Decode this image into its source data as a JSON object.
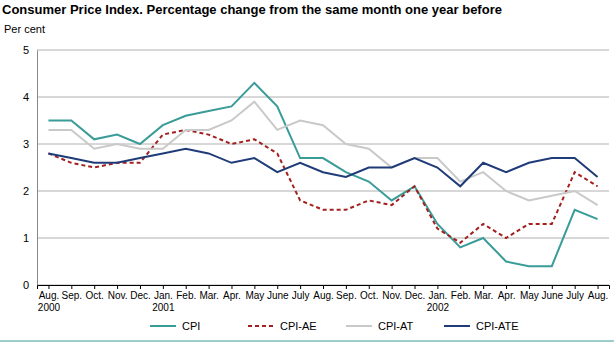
{
  "chart_data": {
    "type": "line",
    "title": "Consumer Price Index. Percentage change from the same month one year before",
    "y_label": "Per cent",
    "categories": [
      "Aug. 2000",
      "Sep.",
      "Oct.",
      "Nov.",
      "Dec.",
      "Jan. 2001",
      "Feb.",
      "Mar.",
      "Apr.",
      "May",
      "June",
      "July",
      "Aug.",
      "Sep.",
      "Oct.",
      "Nov.",
      "Dec.",
      "Jan. 2002",
      "Feb.",
      "Mar.",
      "Apr.",
      "May",
      "June",
      "July",
      "Aug."
    ],
    "series": [
      {
        "name": "CPI",
        "color": "#3a9c98",
        "line_style": "solid",
        "values": [
          3.5,
          3.5,
          3.1,
          3.2,
          3.0,
          3.4,
          3.6,
          3.7,
          3.8,
          4.3,
          3.8,
          2.7,
          2.7,
          2.4,
          2.2,
          1.8,
          2.1,
          1.3,
          0.8,
          1.0,
          0.5,
          0.4,
          0.4,
          1.6,
          1.4
        ]
      },
      {
        "name": "CPI-AE",
        "color": "#a3201f",
        "line_style": "dashed",
        "values": [
          2.8,
          2.6,
          2.5,
          2.6,
          2.6,
          3.2,
          3.3,
          3.2,
          3.0,
          3.1,
          2.8,
          1.8,
          1.6,
          1.6,
          1.8,
          1.7,
          2.1,
          1.2,
          0.9,
          1.3,
          1.0,
          1.3,
          1.3,
          2.4,
          2.1
        ]
      },
      {
        "name": "CPI-AT",
        "color": "#c9c9c9",
        "line_style": "solid",
        "values": [
          3.3,
          3.3,
          2.9,
          3.0,
          2.9,
          2.9,
          3.3,
          3.3,
          3.5,
          3.9,
          3.3,
          3.5,
          3.4,
          3.0,
          2.9,
          2.5,
          2.7,
          2.7,
          2.2,
          2.4,
          2.0,
          1.8,
          1.9,
          2.0,
          1.7
        ]
      },
      {
        "name": "CPI-ATE",
        "color": "#1f3b78",
        "line_style": "solid",
        "values": [
          2.8,
          2.7,
          2.6,
          2.6,
          2.7,
          2.8,
          2.9,
          2.8,
          2.6,
          2.7,
          2.4,
          2.6,
          2.4,
          2.3,
          2.5,
          2.5,
          2.7,
          2.5,
          2.1,
          2.6,
          2.4,
          2.6,
          2.7,
          2.7,
          2.3
        ]
      }
    ],
    "ylim": [
      0,
      5
    ],
    "yticks": [
      0,
      1,
      2,
      3,
      4,
      5
    ],
    "grid": true,
    "legend": "bottom"
  }
}
